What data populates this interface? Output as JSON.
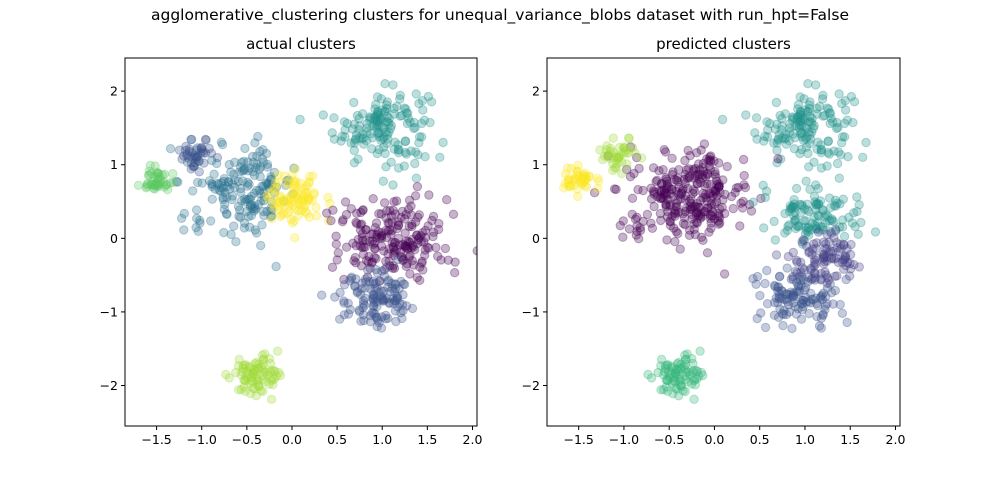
{
  "figure": {
    "suptitle": "agglomerative_clustering clusters for unequal_variance_blobs dataset with run_hpt=False"
  },
  "palette": {
    "viridis_dark": "#440154",
    "viridis_indigo": "#3b528b",
    "viridis_blue": "#31688e",
    "viridis_teal": "#21918c",
    "viridis_green": "#5ec962",
    "viridis_lime": "#a0da39",
    "viridis_yellow": "#fde725",
    "cadet": "#2c728e",
    "sea_green": "#35b779"
  },
  "chart_data": [
    {
      "type": "scatter",
      "title": "actual clusters",
      "xlabel": "",
      "ylabel": "",
      "xlim": [
        -1.85,
        2.05
      ],
      "ylim": [
        -2.55,
        2.45
      ],
      "xticks": [
        -1.5,
        -1.0,
        -0.5,
        0.0,
        0.5,
        1.0,
        1.5,
        2.0
      ],
      "xtick_labels": [
        "−1.5",
        "−1.0",
        "−0.5",
        "0.0",
        "0.5",
        "1.0",
        "1.5",
        "2.0"
      ],
      "yticks": [
        -2,
        -1,
        0,
        1,
        2
      ],
      "ytick_labels": [
        "−2",
        "−1",
        "0",
        "1",
        "2"
      ],
      "grid": false,
      "marker_alpha": 0.3,
      "clusters": [
        {
          "color": "#21918c",
          "center": [
            1.0,
            1.52
          ],
          "spread": [
            0.26,
            0.26
          ],
          "n": 150
        },
        {
          "color": "#2c728e",
          "center": [
            -0.55,
            0.68
          ],
          "spread": [
            0.3,
            0.3
          ],
          "n": 170
        },
        {
          "color": "#3b528b",
          "center": [
            -1.05,
            1.15
          ],
          "spread": [
            0.1,
            0.1
          ],
          "n": 40
        },
        {
          "color": "#fde725",
          "center": [
            0.05,
            0.52
          ],
          "spread": [
            0.15,
            0.2
          ],
          "n": 90
        },
        {
          "color": "#5ec962",
          "center": [
            -1.5,
            0.8
          ],
          "spread": [
            0.09,
            0.09
          ],
          "n": 45
        },
        {
          "color": "#440154",
          "center": [
            1.1,
            0.0
          ],
          "spread": [
            0.3,
            0.3
          ],
          "n": 200
        },
        {
          "color": "#3b528b",
          "center": [
            0.95,
            -0.8
          ],
          "spread": [
            0.22,
            0.22
          ],
          "n": 120
        },
        {
          "color": "#a0da39",
          "center": [
            -0.38,
            -1.88
          ],
          "spread": [
            0.14,
            0.14
          ],
          "n": 80
        }
      ]
    },
    {
      "type": "scatter",
      "title": "predicted clusters",
      "xlabel": "",
      "ylabel": "",
      "xlim": [
        -1.85,
        2.05
      ],
      "ylim": [
        -2.55,
        2.45
      ],
      "xticks": [
        -1.5,
        -1.0,
        -0.5,
        0.0,
        0.5,
        1.0,
        1.5,
        2.0
      ],
      "xtick_labels": [
        "−1.5",
        "−1.0",
        "−0.5",
        "0.0",
        "0.5",
        "1.0",
        "1.5",
        "2.0"
      ],
      "yticks": [
        -2,
        -1,
        0,
        1,
        2
      ],
      "ytick_labels": [
        "−2",
        "−1",
        "0",
        "1",
        "2"
      ],
      "grid": false,
      "marker_alpha": 0.3,
      "clusters": [
        {
          "color": "#21918c",
          "center": [
            1.0,
            1.52
          ],
          "spread": [
            0.26,
            0.26
          ],
          "n": 150
        },
        {
          "color": "#440154",
          "center": [
            -0.3,
            0.58
          ],
          "spread": [
            0.33,
            0.3
          ],
          "n": 280
        },
        {
          "color": "#a0da39",
          "center": [
            -1.05,
            1.15
          ],
          "spread": [
            0.11,
            0.11
          ],
          "n": 40
        },
        {
          "color": "#fde725",
          "center": [
            -1.5,
            0.8
          ],
          "spread": [
            0.09,
            0.09
          ],
          "n": 45
        },
        {
          "color": "#21918c",
          "center": [
            1.1,
            0.3
          ],
          "spread": [
            0.25,
            0.18
          ],
          "n": 110
        },
        {
          "color": "#3b528b",
          "center": [
            0.95,
            -0.8
          ],
          "spread": [
            0.22,
            0.22
          ],
          "n": 120
        },
        {
          "color": "#433e85",
          "center": [
            1.25,
            -0.25
          ],
          "spread": [
            0.2,
            0.2
          ],
          "n": 90
        },
        {
          "color": "#35b779",
          "center": [
            -0.38,
            -1.88
          ],
          "spread": [
            0.14,
            0.14
          ],
          "n": 80
        }
      ]
    }
  ]
}
